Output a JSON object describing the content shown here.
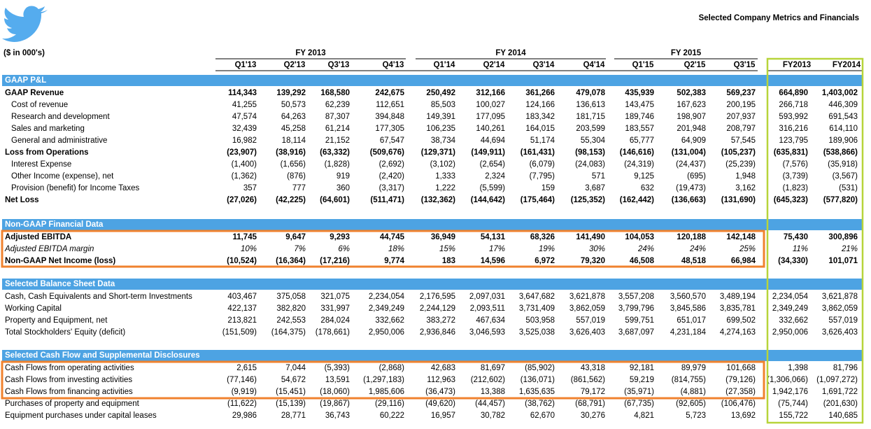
{
  "header": {
    "title": "Selected Company Metrics and Financials",
    "units": "($ in 000's)"
  },
  "groups": [
    "FY 2013",
    "FY 2014",
    "FY 2015"
  ],
  "columns": [
    "Q1'13",
    "Q2'13",
    "Q3'13",
    "Q4'13",
    "Q1'14",
    "Q2'14",
    "Q3'14",
    "Q4'14",
    "Q1'15",
    "Q2'15",
    "Q3'15",
    "FY2013",
    "FY2014"
  ],
  "sections": [
    {
      "title": "GAAP P&L",
      "rows": [
        {
          "label": "GAAP Revenue",
          "values": [
            "114,343",
            "139,292",
            "168,580",
            "242,675",
            "250,492",
            "312,166",
            "361,266",
            "479,078",
            "435,939",
            "502,383",
            "569,237",
            "664,890",
            "1,403,002"
          ]
        },
        {
          "label": "Cost of revenue",
          "values": [
            "41,255",
            "50,573",
            "62,239",
            "112,651",
            "85,503",
            "100,027",
            "124,166",
            "136,613",
            "143,475",
            "167,623",
            "200,195",
            "266,718",
            "446,309"
          ]
        },
        {
          "label": "Research and development",
          "values": [
            "47,574",
            "64,263",
            "87,307",
            "394,848",
            "149,391",
            "177,095",
            "183,342",
            "181,715",
            "189,746",
            "198,907",
            "207,937",
            "593,992",
            "691,543"
          ]
        },
        {
          "label": "Sales and marketing",
          "values": [
            "32,439",
            "45,258",
            "61,214",
            "177,305",
            "106,235",
            "140,261",
            "164,015",
            "203,599",
            "183,557",
            "201,948",
            "208,797",
            "316,216",
            "614,110"
          ]
        },
        {
          "label": "General and administrative",
          "values": [
            "16,982",
            "18,114",
            "21,152",
            "67,547",
            "38,734",
            "44,694",
            "51,174",
            "55,304",
            "65,777",
            "64,909",
            "57,545",
            "123,795",
            "189,906"
          ]
        },
        {
          "label": "Loss from Operations",
          "values": [
            "(23,907)",
            "(38,916)",
            "(63,332)",
            "(509,676)",
            "(129,371)",
            "(149,911)",
            "(161,431)",
            "(98,153)",
            "(146,616)",
            "(131,004)",
            "(105,237)",
            "(635,831)",
            "(538,866)"
          ]
        },
        {
          "label": "Interest Expense",
          "values": [
            "(1,400)",
            "(1,656)",
            "(1,828)",
            "(2,692)",
            "(3,102)",
            "(2,654)",
            "(6,079)",
            "(24,083)",
            "(24,319)",
            "(24,437)",
            "(25,239)",
            "(7,576)",
            "(35,918)"
          ]
        },
        {
          "label": "Other Income (expense), net",
          "values": [
            "(1,362)",
            "(876)",
            "919",
            "(2,420)",
            "1,333",
            "2,324",
            "(7,795)",
            "571",
            "9,125",
            "(695)",
            "1,948",
            "(3,739)",
            "(3,567)"
          ]
        },
        {
          "label": "Provision (benefit) for Income Taxes",
          "values": [
            "357",
            "777",
            "360",
            "(3,317)",
            "1,222",
            "(5,599)",
            "159",
            "3,687",
            "632",
            "(19,473)",
            "3,162",
            "(1,823)",
            "(531)"
          ]
        },
        {
          "label": "Net Loss",
          "values": [
            "(27,026)",
            "(42,225)",
            "(64,601)",
            "(511,471)",
            "(132,362)",
            "(144,642)",
            "(175,464)",
            "(125,352)",
            "(162,442)",
            "(136,663)",
            "(131,690)",
            "(645,323)",
            "(577,820)"
          ]
        }
      ]
    },
    {
      "title": "Non-GAAP Financial Data",
      "rows": [
        {
          "label": "Adjusted EBITDA",
          "values": [
            "11,745",
            "9,647",
            "9,293",
            "44,745",
            "36,949",
            "54,131",
            "68,326",
            "141,490",
            "104,053",
            "120,188",
            "142,148",
            "75,430",
            "300,896"
          ]
        },
        {
          "label": "Adjusted EBITDA margin",
          "values": [
            "10%",
            "7%",
            "6%",
            "18%",
            "15%",
            "17%",
            "19%",
            "30%",
            "24%",
            "24%",
            "25%",
            "11%",
            "21%"
          ]
        },
        {
          "label": "Non-GAAP Net Income (loss)",
          "values": [
            "(10,524)",
            "(16,364)",
            "(17,216)",
            "9,774",
            "183",
            "14,596",
            "6,972",
            "79,320",
            "46,508",
            "48,518",
            "66,984",
            "(34,330)",
            "101,071"
          ]
        }
      ]
    },
    {
      "title": "Selected Balance Sheet Data",
      "rows": [
        {
          "label": "Cash, Cash Equivalents and Short-term Investments",
          "values": [
            "403,467",
            "375,058",
            "321,075",
            "2,234,054",
            "2,176,595",
            "2,097,031",
            "3,647,682",
            "3,621,878",
            "3,557,208",
            "3,560,570",
            "3,489,194",
            "2,234,054",
            "3,621,878"
          ]
        },
        {
          "label": "Working Capital",
          "values": [
            "422,137",
            "382,820",
            "331,997",
            "2,349,249",
            "2,244,129",
            "2,093,511",
            "3,731,409",
            "3,862,059",
            "3,799,796",
            "3,845,586",
            "3,835,781",
            "2,349,249",
            "3,862,059"
          ]
        },
        {
          "label": "Property and Equipment, net",
          "values": [
            "213,821",
            "242,553",
            "284,024",
            "332,662",
            "383,272",
            "467,634",
            "503,958",
            "557,019",
            "599,751",
            "651,017",
            "699,502",
            "332,662",
            "557,019"
          ]
        },
        {
          "label": "Total Stockholders' Equity (deficit)",
          "values": [
            "(151,509)",
            "(164,375)",
            "(178,661)",
            "2,950,006",
            "2,936,846",
            "3,046,593",
            "3,525,038",
            "3,626,403",
            "3,687,097",
            "4,231,184",
            "4,274,163",
            "2,950,006",
            "3,626,403"
          ]
        }
      ]
    },
    {
      "title": "Selected Cash Flow and Supplemental Disclosures",
      "rows": [
        {
          "label": "Cash Flows from operating activities",
          "values": [
            "2,615",
            "7,044",
            "(5,393)",
            "(2,868)",
            "42,683",
            "81,697",
            "(85,902)",
            "43,318",
            "92,181",
            "89,979",
            "101,668",
            "1,398",
            "81,796"
          ]
        },
        {
          "label": "Cash Flows from investing activities",
          "values": [
            "(77,146)",
            "54,672",
            "13,591",
            "(1,297,183)",
            "112,963",
            "(212,602)",
            "(136,071)",
            "(861,562)",
            "59,219",
            "(814,755)",
            "(79,126)",
            "(1,306,066)",
            "(1,097,272)"
          ]
        },
        {
          "label": "Cash Flows from financing activities",
          "values": [
            "(9,919)",
            "(15,451)",
            "(18,060)",
            "1,985,606",
            "(36,473)",
            "13,388",
            "1,635,635",
            "79,172",
            "(35,971)",
            "(4,881)",
            "(27,358)",
            "1,942,176",
            "1,691,722"
          ]
        },
        {
          "label": "Purchases of property and equipment",
          "values": [
            "(11,622)",
            "(15,139)",
            "(19,867)",
            "(29,116)",
            "(49,620)",
            "(44,457)",
            "(38,762)",
            "(68,791)",
            "(67,735)",
            "(92,605)",
            "(106,476)",
            "(75,744)",
            "(201,630)"
          ]
        },
        {
          "label": "Equipment purchases under capital leases",
          "values": [
            "29,986",
            "28,771",
            "36,743",
            "60,222",
            "16,957",
            "30,782",
            "62,670",
            "30,276",
            "4,821",
            "5,723",
            "13,692",
            "155,722",
            "140,685"
          ]
        }
      ]
    }
  ]
}
